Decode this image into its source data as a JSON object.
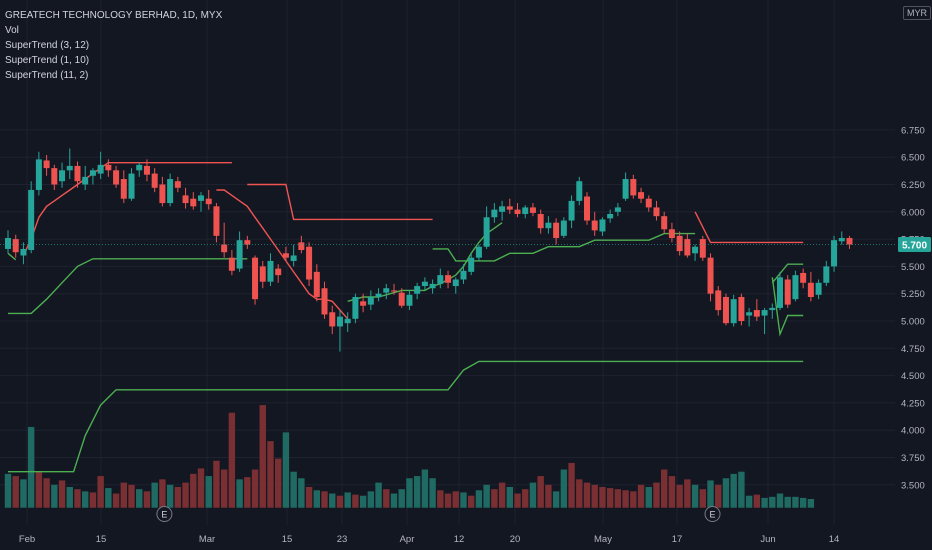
{
  "chart_data": {
    "type": "candlestick",
    "title": "GREATECH TECHNOLOGY BERHAD, 1D, MYX",
    "currency": "MYR",
    "last_price_label": "5.700",
    "indicators": [
      "Vol",
      "SuperTrend (3, 12)",
      "SuperTrend (1, 10)",
      "SuperTrend (11, 2)"
    ],
    "y_ticks": [
      "6.750",
      "6.500",
      "6.250",
      "6.000",
      "5.750",
      "5.500",
      "5.250",
      "5.000",
      "4.750",
      "4.500",
      "4.250",
      "4.000",
      "3.750",
      "3.500"
    ],
    "y_tick_values": [
      6.75,
      6.5,
      6.25,
      6.0,
      5.75,
      5.5,
      5.25,
      5.0,
      4.75,
      4.5,
      4.25,
      4.0,
      3.75,
      3.5
    ],
    "x_ticks": [
      "Feb",
      "15",
      "Mar",
      "15",
      "23",
      "Apr",
      "12",
      "20",
      "May",
      "17",
      "Jun",
      "14"
    ],
    "ylim": [
      3.29,
      6.92
    ],
    "colors": {
      "up": "#26a69a",
      "down": "#ef5350",
      "up_vol": "#1f6b63",
      "down_vol": "#7a2f32",
      "st_up": "#4caf50",
      "st_down": "#f05451",
      "grid": "#1e2230",
      "text": "#b2b5be"
    },
    "candles": [
      {
        "o": 5.66,
        "h": 5.83,
        "l": 5.62,
        "c": 5.76
      },
      {
        "o": 5.75,
        "h": 5.79,
        "l": 5.58,
        "c": 5.63
      },
      {
        "o": 5.6,
        "h": 5.72,
        "l": 5.52,
        "c": 5.66
      },
      {
        "o": 5.65,
        "h": 6.28,
        "l": 5.62,
        "c": 6.2
      },
      {
        "o": 6.2,
        "h": 6.55,
        "l": 6.15,
        "c": 6.48
      },
      {
        "o": 6.47,
        "h": 6.52,
        "l": 6.33,
        "c": 6.4
      },
      {
        "o": 6.4,
        "h": 6.43,
        "l": 6.2,
        "c": 6.25
      },
      {
        "o": 6.28,
        "h": 6.45,
        "l": 6.22,
        "c": 6.38
      },
      {
        "o": 6.38,
        "h": 6.58,
        "l": 6.3,
        "c": 6.42
      },
      {
        "o": 6.42,
        "h": 6.46,
        "l": 6.22,
        "c": 6.28
      },
      {
        "o": 6.25,
        "h": 6.42,
        "l": 6.2,
        "c": 6.32
      },
      {
        "o": 6.33,
        "h": 6.4,
        "l": 6.25,
        "c": 6.38
      },
      {
        "o": 6.35,
        "h": 6.55,
        "l": 6.3,
        "c": 6.43
      },
      {
        "o": 6.43,
        "h": 6.48,
        "l": 6.32,
        "c": 6.38
      },
      {
        "o": 6.38,
        "h": 6.42,
        "l": 6.22,
        "c": 6.25
      },
      {
        "o": 6.3,
        "h": 6.38,
        "l": 6.08,
        "c": 6.12
      },
      {
        "o": 6.12,
        "h": 6.4,
        "l": 6.1,
        "c": 6.35
      },
      {
        "o": 6.38,
        "h": 6.45,
        "l": 6.32,
        "c": 6.43
      },
      {
        "o": 6.42,
        "h": 6.48,
        "l": 6.28,
        "c": 6.34
      },
      {
        "o": 6.35,
        "h": 6.4,
        "l": 6.18,
        "c": 6.22
      },
      {
        "o": 6.25,
        "h": 6.32,
        "l": 6.05,
        "c": 6.08
      },
      {
        "o": 6.08,
        "h": 6.35,
        "l": 6.05,
        "c": 6.3
      },
      {
        "o": 6.28,
        "h": 6.32,
        "l": 6.18,
        "c": 6.22
      },
      {
        "o": 6.15,
        "h": 6.22,
        "l": 6.03,
        "c": 6.08
      },
      {
        "o": 6.12,
        "h": 6.18,
        "l": 6.02,
        "c": 6.05
      },
      {
        "o": 6.1,
        "h": 6.18,
        "l": 6.0,
        "c": 6.15
      },
      {
        "o": 6.12,
        "h": 6.2,
        "l": 6.02,
        "c": 6.07
      },
      {
        "o": 6.05,
        "h": 6.08,
        "l": 5.72,
        "c": 5.78
      },
      {
        "o": 5.7,
        "h": 5.9,
        "l": 5.58,
        "c": 5.63
      },
      {
        "o": 5.58,
        "h": 5.65,
        "l": 5.42,
        "c": 5.46
      },
      {
        "o": 5.48,
        "h": 5.82,
        "l": 5.45,
        "c": 5.74
      },
      {
        "o": 5.74,
        "h": 5.78,
        "l": 5.66,
        "c": 5.7
      },
      {
        "o": 5.58,
        "h": 5.6,
        "l": 5.15,
        "c": 5.2
      },
      {
        "o": 5.5,
        "h": 5.55,
        "l": 5.3,
        "c": 5.36
      },
      {
        "o": 5.36,
        "h": 5.62,
        "l": 5.32,
        "c": 5.55
      },
      {
        "o": 5.48,
        "h": 5.52,
        "l": 5.35,
        "c": 5.42
      },
      {
        "o": 5.62,
        "h": 5.68,
        "l": 5.55,
        "c": 5.58
      },
      {
        "o": 5.55,
        "h": 5.7,
        "l": 5.5,
        "c": 5.6
      },
      {
        "o": 5.72,
        "h": 5.78,
        "l": 5.62,
        "c": 5.65
      },
      {
        "o": 5.68,
        "h": 5.72,
        "l": 5.32,
        "c": 5.38
      },
      {
        "o": 5.45,
        "h": 5.52,
        "l": 5.18,
        "c": 5.22
      },
      {
        "o": 5.3,
        "h": 5.36,
        "l": 5.02,
        "c": 5.06
      },
      {
        "o": 5.08,
        "h": 5.14,
        "l": 4.88,
        "c": 4.95
      },
      {
        "o": 4.95,
        "h": 5.1,
        "l": 4.72,
        "c": 5.04
      },
      {
        "o": 4.98,
        "h": 5.08,
        "l": 4.9,
        "c": 5.02
      },
      {
        "o": 5.02,
        "h": 5.25,
        "l": 4.98,
        "c": 5.22
      },
      {
        "o": 5.18,
        "h": 5.25,
        "l": 5.08,
        "c": 5.14
      },
      {
        "o": 5.15,
        "h": 5.28,
        "l": 5.1,
        "c": 5.22
      },
      {
        "o": 5.22,
        "h": 5.3,
        "l": 5.18,
        "c": 5.25
      },
      {
        "o": 5.26,
        "h": 5.34,
        "l": 5.2,
        "c": 5.3
      },
      {
        "o": 5.28,
        "h": 5.34,
        "l": 5.24,
        "c": 5.27
      },
      {
        "o": 5.26,
        "h": 5.3,
        "l": 5.12,
        "c": 5.14
      },
      {
        "o": 5.14,
        "h": 5.28,
        "l": 5.1,
        "c": 5.24
      },
      {
        "o": 5.25,
        "h": 5.35,
        "l": 5.2,
        "c": 5.32
      },
      {
        "o": 5.32,
        "h": 5.4,
        "l": 5.28,
        "c": 5.36
      },
      {
        "o": 5.3,
        "h": 5.38,
        "l": 5.25,
        "c": 5.34
      },
      {
        "o": 5.34,
        "h": 5.48,
        "l": 5.3,
        "c": 5.42
      },
      {
        "o": 5.42,
        "h": 5.46,
        "l": 5.3,
        "c": 5.35
      },
      {
        "o": 5.32,
        "h": 5.4,
        "l": 5.25,
        "c": 5.38
      },
      {
        "o": 5.38,
        "h": 5.52,
        "l": 5.34,
        "c": 5.46
      },
      {
        "o": 5.45,
        "h": 5.62,
        "l": 5.42,
        "c": 5.58
      },
      {
        "o": 5.58,
        "h": 5.7,
        "l": 5.55,
        "c": 5.68
      },
      {
        "o": 5.68,
        "h": 6.05,
        "l": 5.66,
        "c": 5.95
      },
      {
        "o": 5.95,
        "h": 6.08,
        "l": 5.9,
        "c": 6.02
      },
      {
        "o": 6.0,
        "h": 6.1,
        "l": 5.92,
        "c": 6.05
      },
      {
        "o": 6.05,
        "h": 6.12,
        "l": 5.98,
        "c": 6.02
      },
      {
        "o": 6.02,
        "h": 6.08,
        "l": 5.95,
        "c": 5.98
      },
      {
        "o": 5.98,
        "h": 6.06,
        "l": 5.94,
        "c": 6.04
      },
      {
        "o": 6.04,
        "h": 6.08,
        "l": 5.96,
        "c": 5.99
      },
      {
        "o": 5.98,
        "h": 6.02,
        "l": 5.8,
        "c": 5.85
      },
      {
        "o": 5.85,
        "h": 5.96,
        "l": 5.8,
        "c": 5.9
      },
      {
        "o": 5.9,
        "h": 5.94,
        "l": 5.7,
        "c": 5.76
      },
      {
        "o": 5.78,
        "h": 5.95,
        "l": 5.76,
        "c": 5.92
      },
      {
        "o": 5.92,
        "h": 6.15,
        "l": 5.85,
        "c": 6.1
      },
      {
        "o": 6.1,
        "h": 6.32,
        "l": 6.06,
        "c": 6.28
      },
      {
        "o": 6.14,
        "h": 6.18,
        "l": 5.88,
        "c": 5.92
      },
      {
        "o": 5.92,
        "h": 6.0,
        "l": 5.78,
        "c": 5.83
      },
      {
        "o": 5.82,
        "h": 5.95,
        "l": 5.78,
        "c": 5.93
      },
      {
        "o": 5.94,
        "h": 6.02,
        "l": 5.9,
        "c": 5.98
      },
      {
        "o": 6.0,
        "h": 6.08,
        "l": 5.96,
        "c": 6.04
      },
      {
        "o": 6.12,
        "h": 6.36,
        "l": 6.1,
        "c": 6.3
      },
      {
        "o": 6.3,
        "h": 6.34,
        "l": 6.12,
        "c": 6.15
      },
      {
        "o": 6.18,
        "h": 6.22,
        "l": 6.08,
        "c": 6.12
      },
      {
        "o": 6.12,
        "h": 6.15,
        "l": 6.0,
        "c": 6.04
      },
      {
        "o": 6.04,
        "h": 6.1,
        "l": 5.92,
        "c": 5.96
      },
      {
        "o": 5.96,
        "h": 6.0,
        "l": 5.8,
        "c": 5.84
      },
      {
        "o": 5.84,
        "h": 5.9,
        "l": 5.72,
        "c": 5.76
      },
      {
        "o": 5.78,
        "h": 5.82,
        "l": 5.6,
        "c": 5.64
      },
      {
        "o": 5.75,
        "h": 5.8,
        "l": 5.58,
        "c": 5.6
      },
      {
        "o": 5.62,
        "h": 5.7,
        "l": 5.55,
        "c": 5.68
      },
      {
        "o": 5.75,
        "h": 5.78,
        "l": 5.55,
        "c": 5.58
      },
      {
        "o": 5.58,
        "h": 5.62,
        "l": 5.18,
        "c": 5.25
      },
      {
        "o": 5.28,
        "h": 5.32,
        "l": 5.05,
        "c": 5.1
      },
      {
        "o": 5.22,
        "h": 5.25,
        "l": 4.96,
        "c": 4.98
      },
      {
        "o": 4.98,
        "h": 5.24,
        "l": 4.95,
        "c": 5.2
      },
      {
        "o": 5.22,
        "h": 5.25,
        "l": 4.96,
        "c": 5.0
      },
      {
        "o": 5.05,
        "h": 5.12,
        "l": 4.95,
        "c": 5.08
      },
      {
        "o": 5.1,
        "h": 5.2,
        "l": 5.0,
        "c": 5.04
      },
      {
        "o": 5.05,
        "h": 5.12,
        "l": 4.88,
        "c": 5.1
      },
      {
        "o": 5.1,
        "h": 5.16,
        "l": 5.02,
        "c": 5.12
      },
      {
        "o": 5.12,
        "h": 5.45,
        "l": 5.1,
        "c": 5.4
      },
      {
        "o": 5.38,
        "h": 5.42,
        "l": 5.12,
        "c": 5.15
      },
      {
        "o": 5.2,
        "h": 5.46,
        "l": 5.18,
        "c": 5.42
      },
      {
        "o": 5.44,
        "h": 5.48,
        "l": 5.3,
        "c": 5.35
      },
      {
        "o": 5.35,
        "h": 5.45,
        "l": 5.18,
        "c": 5.22
      },
      {
        "o": 5.24,
        "h": 5.38,
        "l": 5.2,
        "c": 5.35
      },
      {
        "o": 5.35,
        "h": 5.55,
        "l": 5.32,
        "c": 5.5
      },
      {
        "o": 5.5,
        "h": 5.78,
        "l": 5.45,
        "c": 5.74
      },
      {
        "o": 5.73,
        "h": 5.82,
        "l": 5.7,
        "c": 5.76
      },
      {
        "o": 5.76,
        "h": 5.78,
        "l": 5.66,
        "c": 5.7
      }
    ],
    "volume": [
      {
        "v": 3.6,
        "up": true
      },
      {
        "v": 3.58,
        "up": false
      },
      {
        "v": 3.55,
        "up": true
      },
      {
        "v": 4.03,
        "up": true
      },
      {
        "v": 3.62,
        "up": false
      },
      {
        "v": 3.56,
        "up": false
      },
      {
        "v": 3.5,
        "up": true
      },
      {
        "v": 3.54,
        "up": false
      },
      {
        "v": 3.48,
        "up": true
      },
      {
        "v": 3.46,
        "up": false
      },
      {
        "v": 3.44,
        "up": true
      },
      {
        "v": 3.43,
        "up": false
      },
      {
        "v": 3.58,
        "up": false
      },
      {
        "v": 3.47,
        "up": true
      },
      {
        "v": 3.42,
        "up": false
      },
      {
        "v": 3.52,
        "up": false
      },
      {
        "v": 3.5,
        "up": false
      },
      {
        "v": 3.46,
        "up": true
      },
      {
        "v": 3.44,
        "up": false
      },
      {
        "v": 3.52,
        "up": true
      },
      {
        "v": 3.55,
        "up": false
      },
      {
        "v": 3.5,
        "up": true
      },
      {
        "v": 3.48,
        "up": false
      },
      {
        "v": 3.52,
        "up": false
      },
      {
        "v": 3.6,
        "up": false
      },
      {
        "v": 3.65,
        "up": false
      },
      {
        "v": 3.58,
        "up": true
      },
      {
        "v": 3.72,
        "up": false
      },
      {
        "v": 3.64,
        "up": false
      },
      {
        "v": 4.16,
        "up": false
      },
      {
        "v": 3.55,
        "up": true
      },
      {
        "v": 3.57,
        "up": false
      },
      {
        "v": 3.64,
        "up": false
      },
      {
        "v": 4.23,
        "up": false
      },
      {
        "v": 3.9,
        "up": false
      },
      {
        "v": 3.74,
        "up": false
      },
      {
        "v": 3.98,
        "up": true
      },
      {
        "v": 3.62,
        "up": true
      },
      {
        "v": 3.56,
        "up": true
      },
      {
        "v": 3.48,
        "up": false
      },
      {
        "v": 3.45,
        "up": true
      },
      {
        "v": 3.44,
        "up": false
      },
      {
        "v": 3.42,
        "up": true
      },
      {
        "v": 3.4,
        "up": false
      },
      {
        "v": 3.43,
        "up": true
      },
      {
        "v": 3.41,
        "up": false
      },
      {
        "v": 3.4,
        "up": true
      },
      {
        "v": 3.44,
        "up": true
      },
      {
        "v": 3.52,
        "up": true
      },
      {
        "v": 3.46,
        "up": false
      },
      {
        "v": 3.42,
        "up": true
      },
      {
        "v": 3.46,
        "up": true
      },
      {
        "v": 3.56,
        "up": true
      },
      {
        "v": 3.58,
        "up": true
      },
      {
        "v": 3.64,
        "up": true
      },
      {
        "v": 3.56,
        "up": true
      },
      {
        "v": 3.45,
        "up": false
      },
      {
        "v": 3.42,
        "up": false
      },
      {
        "v": 3.44,
        "up": false
      },
      {
        "v": 3.43,
        "up": true
      },
      {
        "v": 3.4,
        "up": false
      },
      {
        "v": 3.45,
        "up": true
      },
      {
        "v": 3.5,
        "up": true
      },
      {
        "v": 3.46,
        "up": false
      },
      {
        "v": 3.52,
        "up": false
      },
      {
        "v": 3.48,
        "up": true
      },
      {
        "v": 3.42,
        "up": false
      },
      {
        "v": 3.46,
        "up": false
      },
      {
        "v": 3.52,
        "up": true
      },
      {
        "v": 3.58,
        "up": false
      },
      {
        "v": 3.5,
        "up": false
      },
      {
        "v": 3.44,
        "up": true
      },
      {
        "v": 3.64,
        "up": true
      },
      {
        "v": 3.7,
        "up": false
      },
      {
        "v": 3.55,
        "up": false
      },
      {
        "v": 3.52,
        "up": false
      },
      {
        "v": 3.5,
        "up": false
      },
      {
        "v": 3.48,
        "up": false
      },
      {
        "v": 3.47,
        "up": false
      },
      {
        "v": 3.46,
        "up": false
      },
      {
        "v": 3.45,
        "up": false
      },
      {
        "v": 3.44,
        "up": false
      },
      {
        "v": 3.5,
        "up": false
      },
      {
        "v": 3.48,
        "up": true
      },
      {
        "v": 3.52,
        "up": false
      },
      {
        "v": 3.64,
        "up": false
      },
      {
        "v": 3.58,
        "up": false
      },
      {
        "v": 3.5,
        "up": false
      },
      {
        "v": 3.55,
        "up": false
      },
      {
        "v": 3.5,
        "up": true
      },
      {
        "v": 3.46,
        "up": false
      },
      {
        "v": 3.54,
        "up": true
      },
      {
        "v": 3.5,
        "up": false
      },
      {
        "v": 3.56,
        "up": true
      },
      {
        "v": 3.6,
        "up": true
      },
      {
        "v": 3.62,
        "up": true
      },
      {
        "v": 3.4,
        "up": true
      },
      {
        "v": 3.41,
        "up": false
      },
      {
        "v": 3.38,
        "up": true
      },
      {
        "v": 3.39,
        "up": true
      },
      {
        "v": 3.42,
        "up": true
      },
      {
        "v": 3.39,
        "up": true
      },
      {
        "v": 3.39,
        "up": true
      },
      {
        "v": 3.38,
        "up": true
      },
      {
        "v": 3.37,
        "up": true
      }
    ],
    "volume_baseline": 3.29,
    "earnings_markers": [
      {
        "index": 20,
        "label": "E"
      },
      {
        "index": 91,
        "label": "E"
      }
    ],
    "supertrend_3_12": [
      {
        "from": 0,
        "to": 1,
        "values": [
          5.62,
          5.56
        ],
        "trend": "up"
      },
      {
        "from": 2,
        "to": 29,
        "values": [
          5.6,
          5.75,
          5.95,
          6.05,
          6.1,
          6.15,
          6.2,
          6.25,
          6.3,
          6.35,
          6.4,
          6.45,
          6.45,
          6.45,
          6.45,
          6.45,
          6.45,
          6.45,
          6.45,
          6.45,
          6.45,
          6.45,
          6.45,
          6.45,
          6.45,
          6.45,
          6.45,
          6.45
        ],
        "trend": "down"
      },
      {
        "from": 27,
        "to": 44,
        "values": [
          6.2,
          6.2,
          6.15,
          6.1,
          6.05,
          5.95,
          5.85,
          5.75,
          5.65,
          5.55,
          5.45,
          5.35,
          5.25,
          5.2,
          5.2,
          5.18,
          5.1,
          5.02
        ],
        "trend": "down"
      },
      {
        "from": 44,
        "to": 64,
        "values": [
          5.18,
          5.2,
          5.22,
          5.22,
          5.22,
          5.24,
          5.26,
          5.28,
          5.28,
          5.28,
          5.28,
          5.32,
          5.34,
          5.38,
          5.42,
          5.5,
          5.62,
          5.72,
          5.8,
          5.85,
          5.9
        ],
        "trend": "up"
      }
    ],
    "st_down_long": {
      "x_from": 31,
      "x_to": 88,
      "value": 5.93
    },
    "st_up_long": {
      "x_from": 0,
      "x_to": 103,
      "value": 5.57
    },
    "st_up_low": {
      "x_from": 0,
      "x_to": 103,
      "value": 4.63
    }
  }
}
